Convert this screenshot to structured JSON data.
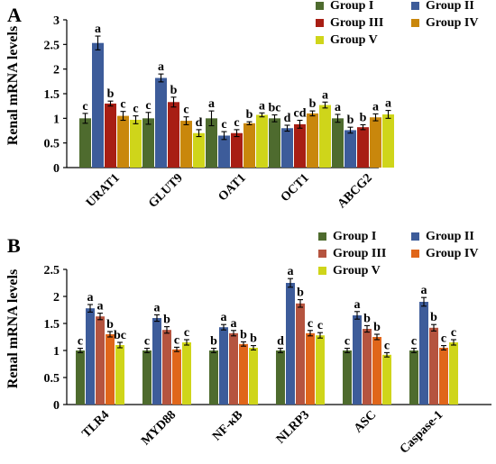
{
  "chart_data": [
    {
      "type": "bar",
      "panel": "A",
      "ylabel": "Renal mRNA levels",
      "ylim": [
        0,
        3
      ],
      "yticks": [
        "0",
        "0.5",
        "1",
        "1.5",
        "2",
        "2.5",
        "3"
      ],
      "categories": [
        "URAT1",
        "GLUT9",
        "OAT1",
        "OCT1",
        "ABCG2"
      ],
      "legend": {
        "placement": "top-right",
        "columns": 2
      },
      "series": [
        {
          "name": "Group I",
          "color": "#4e6b2e",
          "values": [
            1.0,
            1.0,
            1.0,
            1.0,
            1.0
          ],
          "errors": [
            0.1,
            0.12,
            0.15,
            0.07,
            0.08
          ],
          "labels": [
            "c",
            "c",
            "a",
            "bc",
            "a"
          ]
        },
        {
          "name": "Group II",
          "color": "#3d5c9a",
          "values": [
            2.53,
            1.82,
            0.65,
            0.8,
            0.76
          ],
          "errors": [
            0.14,
            0.08,
            0.08,
            0.06,
            0.06
          ],
          "labels": [
            "a",
            "a",
            "c",
            "d",
            "b"
          ]
        },
        {
          "name": "Group III",
          "color": "#a81e14",
          "values": [
            1.3,
            1.33,
            0.7,
            0.88,
            0.82
          ],
          "errors": [
            0.05,
            0.1,
            0.07,
            0.08,
            0.05
          ],
          "labels": [
            "b",
            "b",
            "c",
            "cd",
            "b"
          ]
        },
        {
          "name": "Group IV",
          "color": "#c9870c",
          "values": [
            1.05,
            0.95,
            0.9,
            1.1,
            1.02
          ],
          "errors": [
            0.09,
            0.08,
            0.03,
            0.05,
            0.07
          ],
          "labels": [
            "c",
            "c",
            "b",
            "b",
            "a"
          ]
        },
        {
          "name": "Group V",
          "color": "#cfd51a",
          "values": [
            0.97,
            0.7,
            1.07,
            1.27,
            1.08
          ],
          "errors": [
            0.08,
            0.07,
            0.04,
            0.06,
            0.08
          ],
          "labels": [
            "c",
            "d",
            "a",
            "a",
            "a"
          ]
        }
      ]
    },
    {
      "type": "bar",
      "panel": "B",
      "ylabel": "Renal mRNA levels",
      "ylim": [
        0,
        2.5
      ],
      "yticks": [
        "0",
        "0.5",
        "1",
        "1.5",
        "2",
        "2.5"
      ],
      "categories": [
        "TLR4",
        "MYD88",
        "NF-κB",
        "NLRP3",
        "ASC",
        "Caspase-1"
      ],
      "legend": {
        "placement": "top-right",
        "columns": 2
      },
      "series": [
        {
          "name": "Group I",
          "color": "#4e6b2e",
          "values": [
            1.0,
            1.0,
            1.0,
            1.0,
            1.0,
            1.0
          ],
          "errors": [
            0.04,
            0.04,
            0.04,
            0.04,
            0.04,
            0.04
          ],
          "labels": [
            "c",
            "c",
            "b",
            "d",
            "c",
            "c"
          ]
        },
        {
          "name": "Group II",
          "color": "#3d5c9a",
          "values": [
            1.78,
            1.6,
            1.43,
            2.25,
            1.65,
            1.9
          ],
          "errors": [
            0.07,
            0.06,
            0.05,
            0.08,
            0.07,
            0.08
          ],
          "labels": [
            "a",
            "a",
            "a",
            "a",
            "a",
            "a"
          ]
        },
        {
          "name": "Group III",
          "color": "#b5543f",
          "values": [
            1.63,
            1.38,
            1.32,
            1.87,
            1.4,
            1.42
          ],
          "errors": [
            0.06,
            0.06,
            0.05,
            0.07,
            0.06,
            0.06
          ],
          "labels": [
            "a",
            "b",
            "a",
            "b",
            "b",
            "b"
          ]
        },
        {
          "name": "Group IV",
          "color": "#e0661a",
          "values": [
            1.3,
            1.02,
            1.12,
            1.32,
            1.25,
            1.05
          ],
          "errors": [
            0.05,
            0.04,
            0.04,
            0.05,
            0.05,
            0.04
          ],
          "labels": [
            "b",
            "c",
            "b",
            "c",
            "b",
            "c"
          ]
        },
        {
          "name": "Group V",
          "color": "#cfd51a",
          "values": [
            1.1,
            1.15,
            1.05,
            1.28,
            0.92,
            1.15
          ],
          "errors": [
            0.05,
            0.05,
            0.04,
            0.05,
            0.04,
            0.05
          ],
          "labels": [
            "bc",
            "c",
            "b",
            "c",
            "c",
            "c"
          ]
        }
      ]
    }
  ]
}
